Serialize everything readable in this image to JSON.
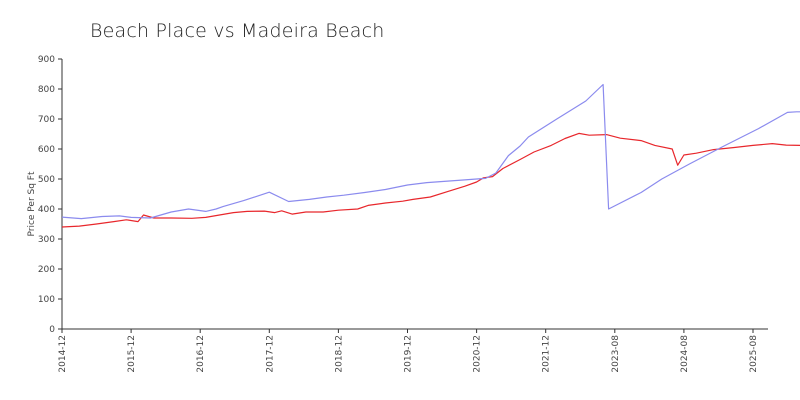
{
  "chart_data": {
    "type": "line",
    "title": "Beach Place vs Madeira Beach",
    "xlabel": "",
    "ylabel": "Price Per Sq Ft",
    "ylim": [
      0,
      900
    ],
    "yticks": [
      0,
      100,
      200,
      300,
      400,
      500,
      600,
      700,
      800,
      900
    ],
    "xticks": [
      {
        "label": "2014-12",
        "x": 2014.92
      },
      {
        "label": "2015-12",
        "x": 2015.92
      },
      {
        "label": "2016-12",
        "x": 2016.92
      },
      {
        "label": "2017-12",
        "x": 2017.92
      },
      {
        "label": "2018-12",
        "x": 2018.92
      },
      {
        "label": "2019-12",
        "x": 2019.92
      },
      {
        "label": "2020-12",
        "x": 2020.92
      },
      {
        "label": "2021-12",
        "x": 2021.92
      },
      {
        "label": "2023-08",
        "x": 2022.92
      },
      {
        "label": "2024-08",
        "x": 2023.92
      },
      {
        "label": "2025-08",
        "x": 2024.92
      }
    ],
    "grid": false,
    "series": [
      {
        "color": "#e8272c",
        "points": [
          [
            2014.92,
            340
          ],
          [
            2015.17,
            343
          ],
          [
            2015.42,
            350
          ],
          [
            2015.67,
            358
          ],
          [
            2015.85,
            364
          ],
          [
            2016.02,
            358
          ],
          [
            2016.1,
            380
          ],
          [
            2016.25,
            370
          ],
          [
            2016.5,
            370
          ],
          [
            2016.8,
            369
          ],
          [
            2017.0,
            372
          ],
          [
            2017.2,
            380
          ],
          [
            2017.4,
            388
          ],
          [
            2017.6,
            392
          ],
          [
            2017.85,
            393
          ],
          [
            2018.0,
            388
          ],
          [
            2018.1,
            394
          ],
          [
            2018.25,
            383
          ],
          [
            2018.45,
            390
          ],
          [
            2018.7,
            390
          ],
          [
            2018.92,
            396
          ],
          [
            2019.2,
            400
          ],
          [
            2019.35,
            412
          ],
          [
            2019.6,
            420
          ],
          [
            2019.85,
            426
          ],
          [
            2020.0,
            432
          ],
          [
            2020.25,
            440
          ],
          [
            2020.5,
            458
          ],
          [
            2020.75,
            476
          ],
          [
            2020.92,
            490
          ],
          [
            2021.02,
            504
          ],
          [
            2021.15,
            508
          ],
          [
            2021.3,
            535
          ],
          [
            2021.55,
            565
          ],
          [
            2021.75,
            590
          ],
          [
            2022.0,
            612
          ],
          [
            2022.2,
            635
          ],
          [
            2022.4,
            652
          ],
          [
            2022.55,
            646
          ],
          [
            2022.8,
            648
          ],
          [
            2023.0,
            636
          ],
          [
            2023.3,
            628
          ],
          [
            2023.5,
            612
          ],
          [
            2023.75,
            600
          ],
          [
            2023.83,
            546
          ],
          [
            2023.92,
            580
          ],
          [
            2024.1,
            586
          ],
          [
            2024.35,
            598
          ],
          [
            2024.65,
            605
          ],
          [
            2024.92,
            612
          ],
          [
            2025.2,
            618
          ],
          [
            2025.4,
            613
          ],
          [
            2025.62,
            612
          ],
          [
            2025.82,
            614
          ]
        ]
      },
      {
        "color": "#8b8bee",
        "points": [
          [
            2014.92,
            373
          ],
          [
            2015.2,
            368
          ],
          [
            2015.5,
            375
          ],
          [
            2015.75,
            377
          ],
          [
            2015.92,
            372
          ],
          [
            2016.2,
            370
          ],
          [
            2016.5,
            390
          ],
          [
            2016.75,
            400
          ],
          [
            2017.0,
            392
          ],
          [
            2017.15,
            400
          ],
          [
            2017.25,
            408
          ],
          [
            2017.55,
            428
          ],
          [
            2017.92,
            456
          ],
          [
            2018.2,
            425
          ],
          [
            2018.5,
            432
          ],
          [
            2018.75,
            440
          ],
          [
            2019.0,
            446
          ],
          [
            2019.3,
            455
          ],
          [
            2019.6,
            465
          ],
          [
            2019.92,
            480
          ],
          [
            2020.2,
            488
          ],
          [
            2020.5,
            493
          ],
          [
            2020.75,
            497
          ],
          [
            2020.92,
            500
          ],
          [
            2021.05,
            502
          ],
          [
            2021.2,
            520
          ],
          [
            2021.38,
            578
          ],
          [
            2021.55,
            610
          ],
          [
            2021.67,
            640
          ],
          [
            2022.08,
            700
          ],
          [
            2022.5,
            760
          ],
          [
            2022.75,
            815
          ],
          [
            2022.83,
            400
          ],
          [
            2023.3,
            455
          ],
          [
            2023.6,
            500
          ],
          [
            2024.0,
            550
          ],
          [
            2024.5,
            610
          ],
          [
            2025.0,
            668
          ],
          [
            2025.42,
            722
          ],
          [
            2025.55,
            724
          ],
          [
            2025.8,
            724
          ],
          [
            2026.1,
            725
          ],
          [
            2026.35,
            722
          ]
        ]
      }
    ]
  }
}
